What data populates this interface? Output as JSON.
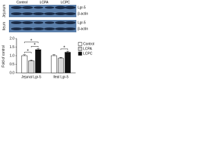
{
  "blot_panel": {
    "lanes": [
      "Control",
      "LCPA",
      "LCPC"
    ],
    "blocks": [
      {
        "tissue": "Jejunum",
        "bands": [
          "Lgr-5",
          "β-actin"
        ]
      },
      {
        "tissue": "Ileum",
        "bands": [
          "Lgr-5",
          "β-actin"
        ]
      }
    ]
  },
  "chart_data": {
    "type": "bar",
    "ylabel": "Fold of control",
    "categories": [
      "Jejunal Lgr-5",
      "Ileal Lgr-5"
    ],
    "series": [
      {
        "name": "Control",
        "color": "#ffffff",
        "values": [
          1.0,
          1.0
        ],
        "errors": [
          0.05,
          0.06
        ]
      },
      {
        "name": "LCPA",
        "color": "#d9d9d9",
        "values": [
          0.7,
          0.85
        ],
        "errors": [
          0.05,
          0.05
        ]
      },
      {
        "name": "LCPC",
        "color": "#111111",
        "values": [
          1.35,
          1.2
        ],
        "errors": [
          0.06,
          0.06
        ]
      }
    ],
    "ylim": [
      0,
      2
    ],
    "yticks": [
      {
        "value": 0,
        "label": "0.0"
      },
      0.5,
      {
        "value": 1,
        "label": "1.0"
      },
      1.5,
      {
        "value": 2,
        "label": "2.0"
      }
    ],
    "annotations": [
      "*",
      "*",
      "*",
      "*"
    ]
  }
}
